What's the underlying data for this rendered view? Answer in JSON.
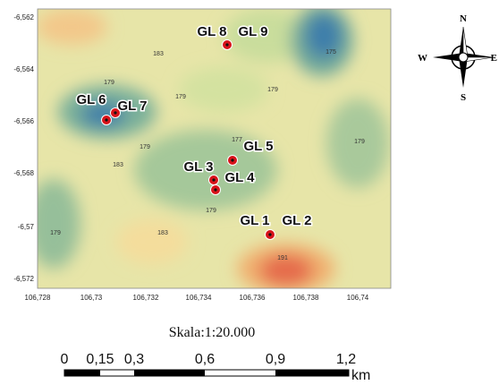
{
  "map": {
    "y_axis_labels": [
      "-6,562",
      "-6,564",
      "-6,566",
      "-6,568",
      "-6,57",
      "-6,572"
    ],
    "x_axis_labels": [
      "106,728",
      "106,73",
      "106,732",
      "106,734",
      "106,736",
      "106,738",
      "106,74"
    ],
    "sites": [
      "GL 8",
      "GL 9",
      "GL 6",
      "GL 7",
      "GL 5",
      "GL 3",
      "GL 4",
      "GL 1",
      "GL 2"
    ],
    "contour_labels": [
      "183",
      "179",
      "175",
      "179",
      "179",
      "179",
      "183",
      "177",
      "179",
      "183",
      "191",
      "179",
      "179"
    ],
    "compass": {
      "north": "N",
      "south": "S",
      "east": "E",
      "west": "W"
    },
    "scale": {
      "title": "Skala:1:20.000",
      "ticks": [
        "0",
        "0,15",
        "0,3",
        "0,6",
        "0,9",
        "1,2"
      ],
      "unit": "km"
    }
  }
}
